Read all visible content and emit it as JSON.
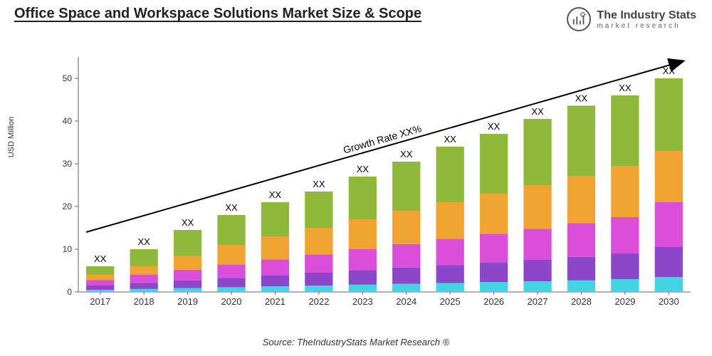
{
  "title": "Office Space and Workspace Solutions Market Size & Scope",
  "title_fontsize": 20,
  "logo": {
    "main": "The Industry Stats",
    "sub": "market research",
    "main_fontsize": 16
  },
  "source": "Source: TheIndustryStats Market Research ®",
  "y_axis": {
    "label": "USD Million",
    "label_fontsize": 11,
    "min": 0,
    "max": 55,
    "ticks": [
      0,
      10,
      20,
      30,
      40,
      50
    ],
    "tick_fontsize": 12,
    "tick_color": "#333333",
    "axis_color": "#666666"
  },
  "x_axis": {
    "tick_fontsize": 13,
    "tick_color": "#333333",
    "axis_color": "#666666"
  },
  "segment_colors": [
    "#42d4e2",
    "#8b46c9",
    "#d94fd9",
    "#f0a330",
    "#8fb93a"
  ],
  "bar_label": "XX",
  "bar_label_fontsize": 13,
  "bar_label_color": "#000000",
  "bar_width_ratio": 0.64,
  "growth_arrow": {
    "label": "Growth Rate XX%",
    "label_fontsize": 14,
    "color": "#000000",
    "stroke_width": 2,
    "x1_year_index": 0,
    "y1_value": 14,
    "x2_year_index": 13,
    "y2_value": 54
  },
  "years": [
    "2017",
    "2018",
    "2019",
    "2020",
    "2021",
    "2022",
    "2023",
    "2024",
    "2025",
    "2026",
    "2027",
    "2028",
    "2029",
    "2030"
  ],
  "data": [
    {
      "year": "2017",
      "segments": [
        0.5,
        1.0,
        1.3,
        1.2,
        2.0
      ]
    },
    {
      "year": "2018",
      "segments": [
        0.7,
        1.4,
        1.9,
        2.0,
        4.0
      ]
    },
    {
      "year": "2019",
      "segments": [
        0.9,
        1.8,
        2.5,
        3.3,
        6.0
      ]
    },
    {
      "year": "2020",
      "segments": [
        1.1,
        2.2,
        3.1,
        4.6,
        7.0
      ]
    },
    {
      "year": "2021",
      "segments": [
        1.3,
        2.6,
        3.7,
        5.4,
        8.0
      ]
    },
    {
      "year": "2022",
      "segments": [
        1.5,
        3.0,
        4.3,
        6.2,
        8.5
      ]
    },
    {
      "year": "2023",
      "segments": [
        1.7,
        3.4,
        4.9,
        7.0,
        10.0
      ]
    },
    {
      "year": "2024",
      "segments": [
        1.9,
        3.8,
        5.5,
        7.8,
        11.5
      ]
    },
    {
      "year": "2025",
      "segments": [
        2.1,
        4.2,
        6.1,
        8.6,
        13.0
      ]
    },
    {
      "year": "2026",
      "segments": [
        2.3,
        4.6,
        6.7,
        9.4,
        14.0
      ]
    },
    {
      "year": "2027",
      "segments": [
        2.5,
        5.0,
        7.3,
        10.2,
        15.5
      ]
    },
    {
      "year": "2028",
      "segments": [
        2.7,
        5.5,
        7.9,
        11.0,
        16.5
      ]
    },
    {
      "year": "2029",
      "segments": [
        3.0,
        6.0,
        8.5,
        12.0,
        16.5
      ]
    },
    {
      "year": "2030",
      "segments": [
        3.5,
        7.0,
        10.5,
        12.0,
        17.0
      ]
    }
  ],
  "plot": {
    "background": "#ffffff"
  }
}
